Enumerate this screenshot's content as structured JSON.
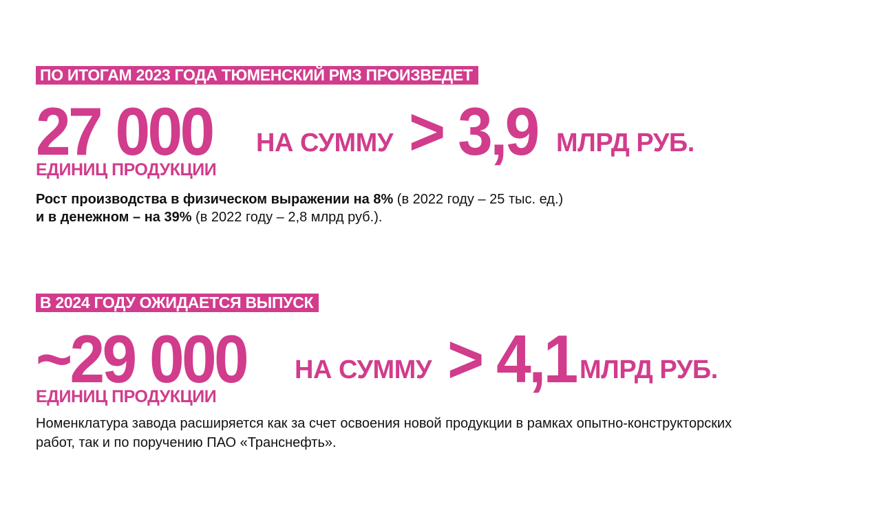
{
  "accent_color": "#d13c8c",
  "section1": {
    "banner": "ПО ИТОГАМ 2023 ГОДА ТЮМЕНСКИЙ РМЗ ПРОИЗВЕДЕТ",
    "units_value": "27 000",
    "sum_label": "НА СУММУ",
    "sum_value": "> 3,9",
    "sum_unit": "МЛРД РУБ.",
    "units_label": "ЕДИНИЦ ПРОДУКЦИИ",
    "line1_bold": "Рост производства в физическом выражении на 8%",
    "line1_rest": " (в 2022 году – 25 тыс. ед.)",
    "line2_bold": "и в денежном – на 39%",
    "line2_rest": " (в 2022 году – 2,8 млрд руб.)."
  },
  "section2": {
    "banner": "В 2024 ГОДУ ОЖИДАЕТСЯ ВЫПУСК",
    "units_value": "~29 000",
    "sum_label": "НА СУММУ",
    "sum_value": "> 4,1",
    "sum_unit": "МЛРД РУБ.",
    "units_label": "ЕДИНИЦ ПРОДУКЦИИ",
    "line1": "Номенклатура завода расширяется как за счет освоения новой продукции в рамках опытно-конструкторских",
    "line2": "работ, так и по поручению ПАО «Транснефть»."
  }
}
